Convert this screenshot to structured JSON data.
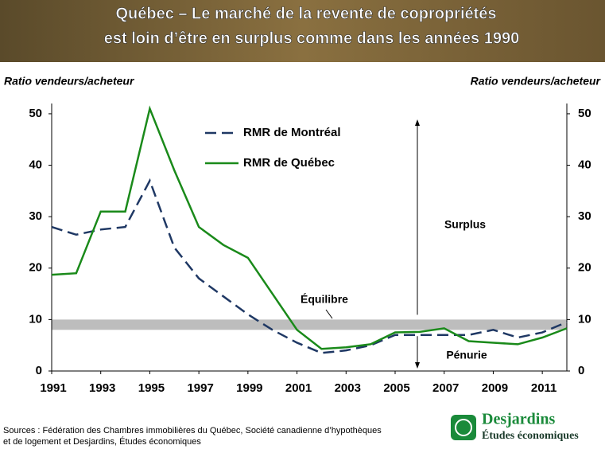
{
  "chart_data": {
    "type": "line",
    "title": [
      "Québec – Le marché de la revente de copropriétés",
      "est loin d’être en surplus comme dans les années 1990"
    ],
    "y_label": "Ratio vendeurs/acheteur",
    "y2_label": "Ratio vendeurs/acheteur",
    "x": [
      1991,
      1992,
      1993,
      1994,
      1995,
      1996,
      1997,
      1998,
      1999,
      2000,
      2001,
      2002,
      2003,
      2004,
      2005,
      2006,
      2007,
      2008,
      2009,
      2010,
      2011,
      2012
    ],
    "series": [
      {
        "name": "RMR de Montréal",
        "color": "#1f3864",
        "dash": true,
        "values": [
          28,
          26.5,
          27.5,
          28,
          37,
          24,
          18,
          14.5,
          11,
          8,
          5.5,
          3.5,
          4,
          5,
          7,
          7,
          7,
          7,
          8,
          6.5,
          7.5,
          9.5
        ]
      },
      {
        "name": "RMR de Québec",
        "color": "#1a8a1a",
        "dash": false,
        "values": [
          18.7,
          19,
          31,
          31,
          51,
          39,
          28,
          24.5,
          22,
          15,
          8,
          4.3,
          4.6,
          5.2,
          7.5,
          7.6,
          8.3,
          5.8,
          5.5,
          5.2,
          6.5,
          8.3
        ]
      }
    ],
    "equilibrium_band": [
      8,
      10
    ],
    "annotations": [
      "Surplus",
      "Équilibre",
      "Pénurie"
    ],
    "xlim": [
      1991,
      2012
    ],
    "xticks": [
      1991,
      1993,
      1995,
      1997,
      1999,
      2001,
      2003,
      2005,
      2007,
      2009,
      2011
    ],
    "ylim": [
      0,
      52
    ],
    "yticks": [
      0,
      10,
      20,
      30,
      40,
      50
    ],
    "y2lim": [
      0,
      52
    ],
    "y2ticks": [
      0,
      10,
      20,
      30,
      40,
      50
    ]
  },
  "footer": {
    "sources": [
      "Sources : Fédération des Chambres immobilières du Québec, Société canadienne d’hypothèques",
      "et de logement et Desjardins, Études économiques"
    ],
    "logo": {
      "name": "Desjardins",
      "subtitle": "Études économiques"
    }
  }
}
